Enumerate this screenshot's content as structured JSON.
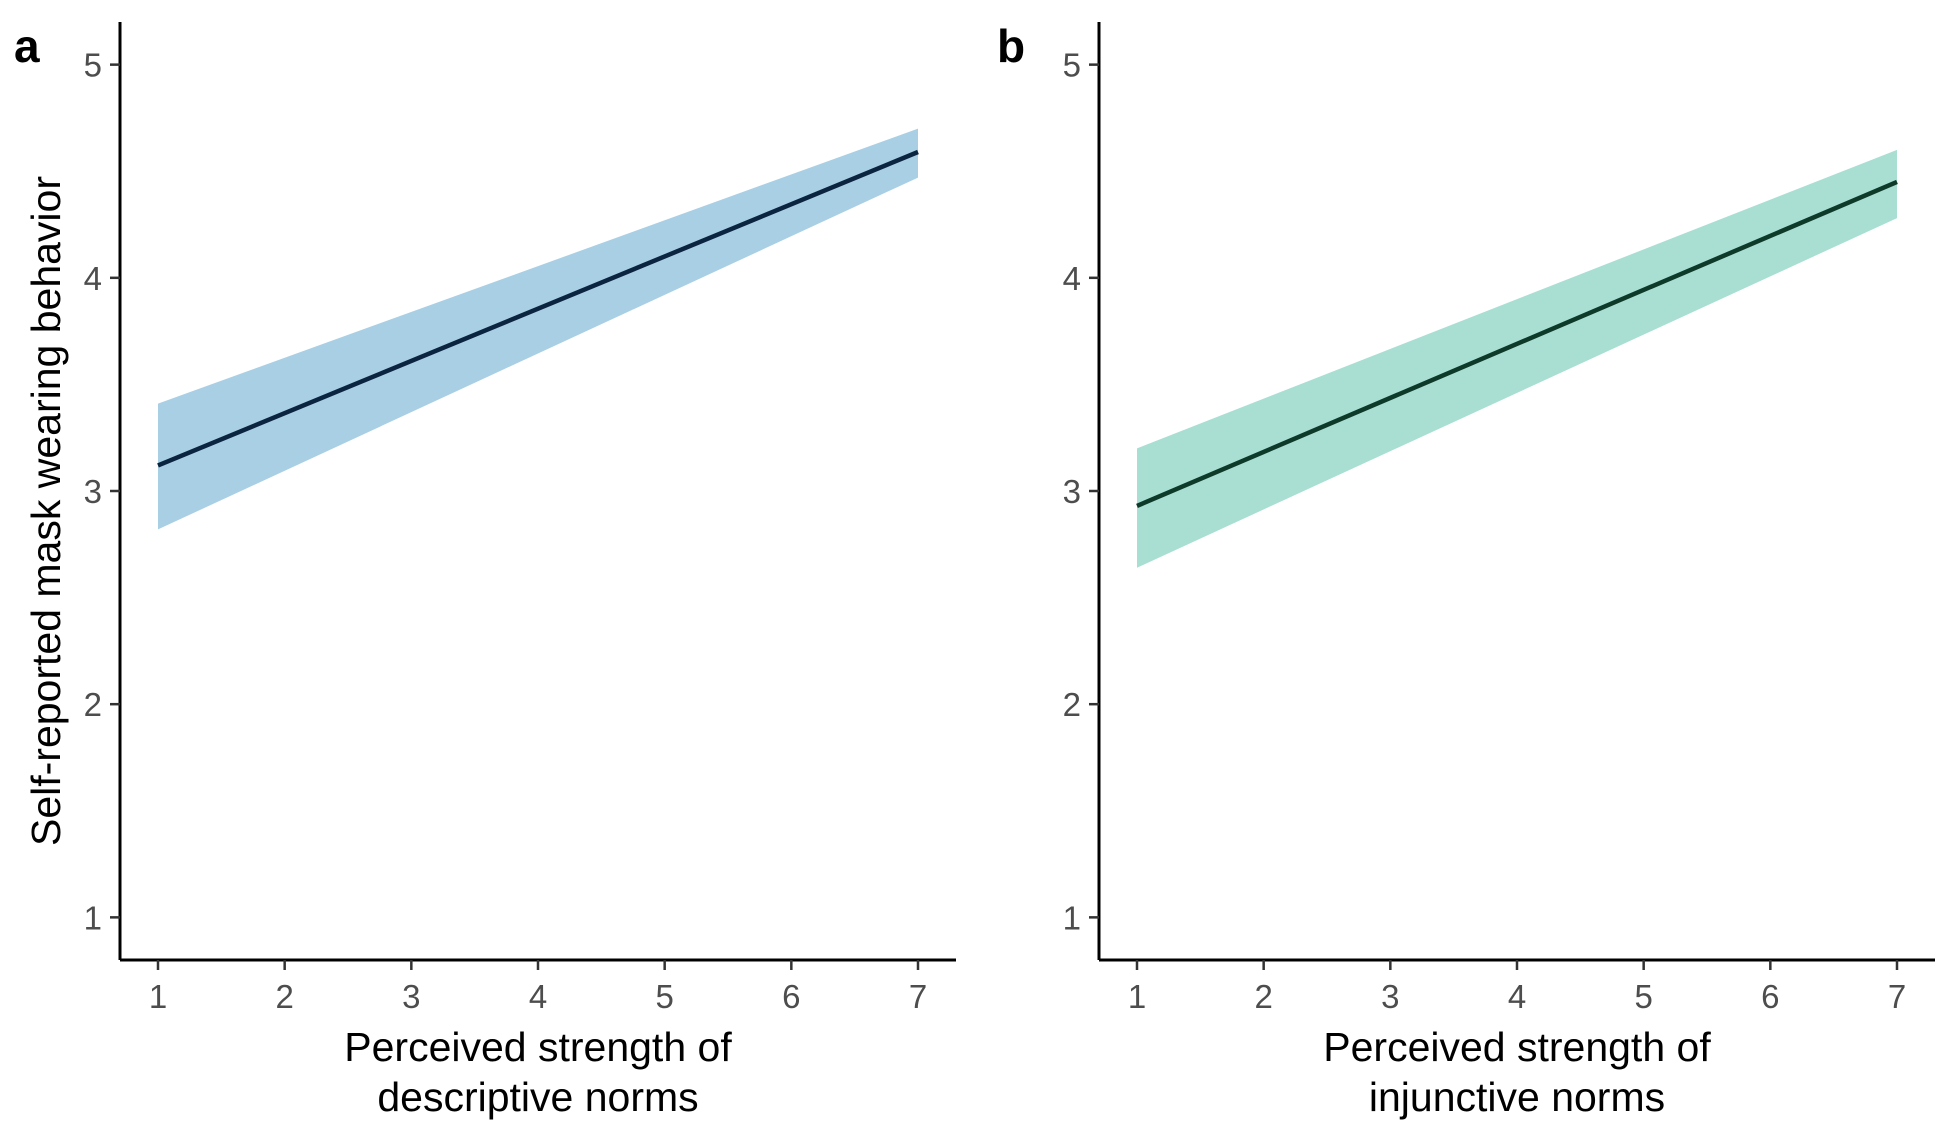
{
  "chart_data": [
    {
      "type": "line",
      "panel_label": "a",
      "title": "",
      "xlabel": [
        "Perceived strength of",
        "descriptive norms"
      ],
      "ylabel": "Self-reported mask wearing behavior",
      "xlim": [
        0.7,
        7.3
      ],
      "ylim": [
        0.8,
        5.2
      ],
      "x_ticks": [
        1,
        2,
        3,
        4,
        5,
        6,
        7
      ],
      "y_ticks": [
        1,
        2,
        3,
        4,
        5
      ],
      "grid": false,
      "series": [
        {
          "x": [
            1,
            7
          ],
          "y": [
            3.12,
            4.59
          ],
          "ci_lower": [
            2.82,
            4.47
          ],
          "ci_upper": [
            3.41,
            4.7
          ],
          "line_color": "#0b2440",
          "ribbon_color": "#a9cfe5"
        }
      ]
    },
    {
      "type": "line",
      "panel_label": "b",
      "title": "",
      "xlabel": [
        "Perceived strength of",
        "injunctive norms"
      ],
      "ylabel": "",
      "xlim": [
        0.7,
        7.3
      ],
      "ylim": [
        0.8,
        5.2
      ],
      "x_ticks": [
        1,
        2,
        3,
        4,
        5,
        6,
        7
      ],
      "y_ticks": [
        1,
        2,
        3,
        4,
        5
      ],
      "grid": false,
      "series": [
        {
          "x": [
            1,
            7
          ],
          "y": [
            2.93,
            4.45
          ],
          "ci_lower": [
            2.64,
            4.28
          ],
          "ci_upper": [
            3.2,
            4.6
          ],
          "line_color": "#0e3a2a",
          "ribbon_color": "#a8dfd2"
        }
      ]
    }
  ]
}
